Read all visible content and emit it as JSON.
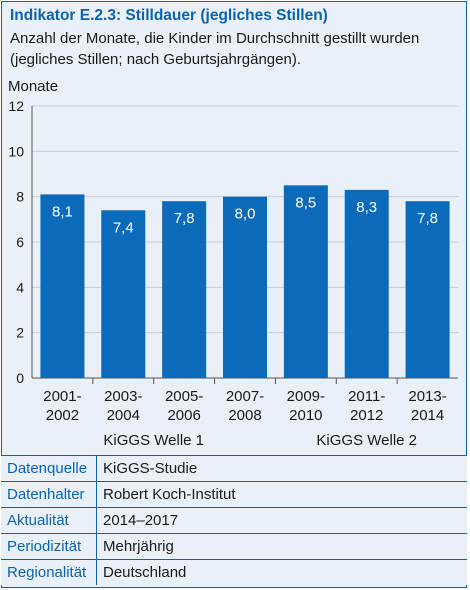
{
  "header": {
    "title": "Indikator E.2.3: Stilldauer (jegliches Stillen)",
    "subtitle": "Anzahl der Monate, die Kinder im Durchschnitt gestillt wurden (jegliches Stillen; nach Geburtsjahrgängen)."
  },
  "colors": {
    "accent": "#0b63b0",
    "bar": "#0b6ab9",
    "background": "#e9f0f8"
  },
  "chart_data": {
    "type": "bar",
    "ylabel": "Monate",
    "ylim": [
      0,
      12
    ],
    "yticks": [
      "0",
      "2",
      "4",
      "6",
      "8",
      "10",
      "12"
    ],
    "grid": true,
    "categories": [
      [
        "2001-",
        "2002"
      ],
      [
        "2003-",
        "2004"
      ],
      [
        "2005-",
        "2006"
      ],
      [
        "2007-",
        "2008"
      ],
      [
        "2009-",
        "2010"
      ],
      [
        "2011-",
        "2012"
      ],
      [
        "2013-",
        "2014"
      ]
    ],
    "values": [
      8.1,
      7.4,
      7.8,
      8.0,
      8.5,
      8.3,
      7.8
    ],
    "data_labels": [
      "8,1",
      "7,4",
      "7,8",
      "8,0",
      "8,5",
      "8,3",
      "7,8"
    ],
    "groups": [
      {
        "label": "KiGGS Welle 1",
        "from": 0,
        "to": 3
      },
      {
        "label": "KiGGS Welle 2",
        "from": 4,
        "to": 6
      }
    ]
  },
  "info": [
    {
      "label": "Datenquelle",
      "value": "KiGGS-Studie"
    },
    {
      "label": "Datenhalter",
      "value": "Robert Koch-Institut"
    },
    {
      "label": "Aktualität",
      "value": "2014–2017"
    },
    {
      "label": "Periodizität",
      "value": "Mehrjährig"
    },
    {
      "label": "Regionalität",
      "value": "Deutschland"
    }
  ]
}
